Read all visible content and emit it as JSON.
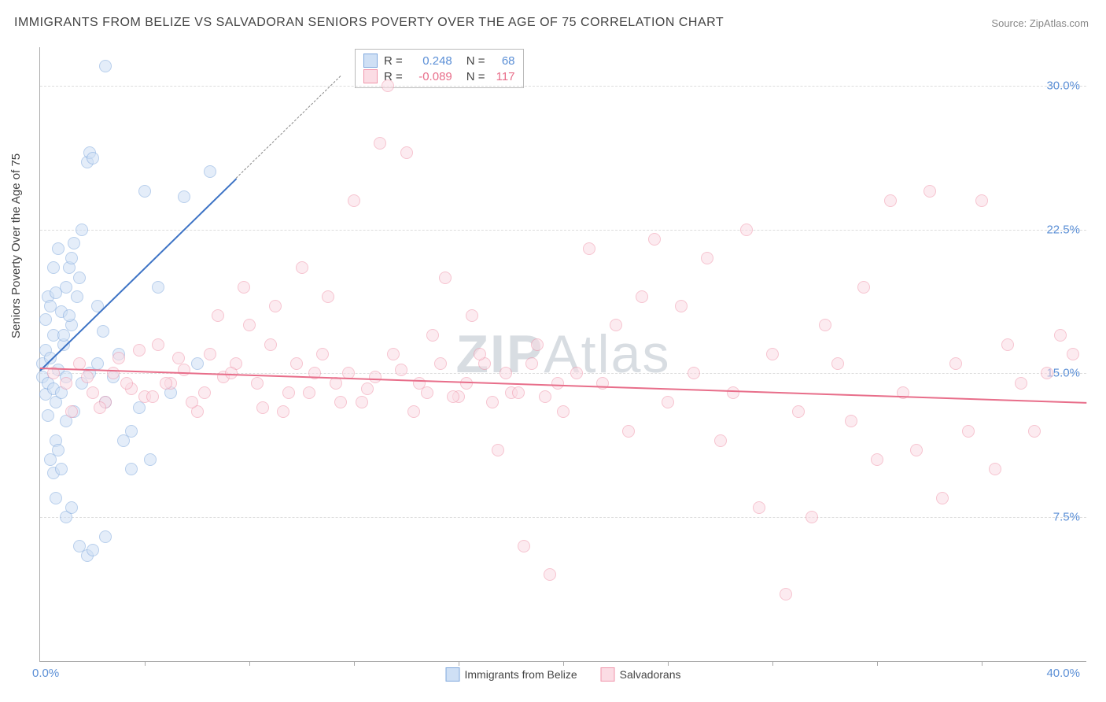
{
  "title": "IMMIGRANTS FROM BELIZE VS SALVADORAN SENIORS POVERTY OVER THE AGE OF 75 CORRELATION CHART",
  "source_label": "Source:",
  "source_value": "ZipAtlas.com",
  "ylabel": "Seniors Poverty Over the Age of 75",
  "watermark_bold": "ZIP",
  "watermark_rest": "Atlas",
  "chart": {
    "type": "scatter",
    "xlim": [
      0,
      40
    ],
    "ylim": [
      0,
      32
    ],
    "x_label_min": "0.0%",
    "x_label_max": "40.0%",
    "y_ticks": [
      7.5,
      15.0,
      22.5,
      30.0
    ],
    "y_tick_labels": [
      "7.5%",
      "15.0%",
      "22.5%",
      "30.0%"
    ],
    "x_minor_ticks": [
      4,
      8,
      12,
      16,
      20,
      24,
      28,
      32,
      36
    ],
    "grid_color": "#dddddd",
    "background_color": "#ffffff",
    "axis_color": "#aaaaaa",
    "tick_label_color": "#5b8fd6",
    "marker_radius": 7,
    "marker_stroke_width": 1.5,
    "series": [
      {
        "name": "Immigrants from Belize",
        "fill": "#cfe0f5",
        "stroke": "#7fa8dd",
        "fill_opacity": 0.55,
        "stats": {
          "R_label": "R =",
          "R": "0.248",
          "N_label": "N =",
          "N": "68",
          "value_color": "#5b8fd6"
        },
        "regression": {
          "x1": 0,
          "y1": 15.2,
          "x2": 7.5,
          "y2": 25.2,
          "dashed_extend_to_x": 11.5,
          "color": "#3d73c5",
          "width": 2
        },
        "points": [
          [
            0.1,
            14.8
          ],
          [
            0.1,
            15.5
          ],
          [
            0.2,
            13.9
          ],
          [
            0.2,
            16.2
          ],
          [
            0.3,
            14.5
          ],
          [
            0.3,
            12.8
          ],
          [
            0.4,
            15.8
          ],
          [
            0.5,
            14.2
          ],
          [
            0.5,
            17.0
          ],
          [
            0.6,
            13.5
          ],
          [
            0.6,
            11.5
          ],
          [
            0.7,
            15.2
          ],
          [
            0.8,
            14.0
          ],
          [
            0.8,
            18.2
          ],
          [
            0.9,
            16.5
          ],
          [
            1.0,
            19.5
          ],
          [
            1.0,
            14.8
          ],
          [
            1.1,
            20.5
          ],
          [
            1.2,
            21.0
          ],
          [
            1.2,
            17.5
          ],
          [
            1.3,
            21.8
          ],
          [
            1.4,
            19.0
          ],
          [
            1.5,
            20.0
          ],
          [
            1.6,
            22.5
          ],
          [
            1.8,
            26.0
          ],
          [
            1.9,
            26.5
          ],
          [
            2.0,
            26.2
          ],
          [
            2.2,
            18.5
          ],
          [
            2.4,
            17.2
          ],
          [
            0.4,
            10.5
          ],
          [
            0.5,
            9.8
          ],
          [
            0.6,
            8.5
          ],
          [
            0.7,
            11.0
          ],
          [
            0.8,
            10.0
          ],
          [
            1.0,
            7.5
          ],
          [
            1.2,
            8.0
          ],
          [
            1.5,
            6.0
          ],
          [
            1.8,
            5.5
          ],
          [
            2.0,
            5.8
          ],
          [
            2.5,
            6.5
          ],
          [
            0.3,
            19.0
          ],
          [
            0.5,
            20.5
          ],
          [
            0.7,
            21.5
          ],
          [
            2.5,
            31.0
          ],
          [
            3.5,
            10.0
          ],
          [
            4.0,
            24.5
          ],
          [
            4.5,
            19.5
          ],
          [
            5.0,
            14.0
          ],
          [
            5.5,
            24.2
          ],
          [
            6.0,
            15.5
          ],
          [
            6.5,
            25.5
          ],
          [
            1.0,
            12.5
          ],
          [
            1.3,
            13.0
          ],
          [
            1.6,
            14.5
          ],
          [
            1.9,
            15.0
          ],
          [
            2.2,
            15.5
          ],
          [
            2.5,
            13.5
          ],
          [
            2.8,
            14.8
          ],
          [
            3.0,
            16.0
          ],
          [
            3.2,
            11.5
          ],
          [
            3.5,
            12.0
          ],
          [
            3.8,
            13.2
          ],
          [
            4.2,
            10.5
          ],
          [
            0.2,
            17.8
          ],
          [
            0.4,
            18.5
          ],
          [
            0.6,
            19.2
          ],
          [
            0.9,
            17.0
          ],
          [
            1.1,
            18.0
          ]
        ]
      },
      {
        "name": "Salvadorans",
        "fill": "#fbdce4",
        "stroke": "#f095ab",
        "fill_opacity": 0.55,
        "stats": {
          "R_label": "R =",
          "R": "-0.089",
          "N_label": "N =",
          "N": "117",
          "value_color": "#e86e8a"
        },
        "regression": {
          "x1": 0,
          "y1": 15.3,
          "x2": 40,
          "y2": 13.5,
          "color": "#e86e8a",
          "width": 2
        },
        "points": [
          [
            0.5,
            15.0
          ],
          [
            1.0,
            14.5
          ],
          [
            1.5,
            15.5
          ],
          [
            2.0,
            14.0
          ],
          [
            2.5,
            13.5
          ],
          [
            3.0,
            15.8
          ],
          [
            3.5,
            14.2
          ],
          [
            4.0,
            13.8
          ],
          [
            4.5,
            16.5
          ],
          [
            5.0,
            14.5
          ],
          [
            5.5,
            15.2
          ],
          [
            6.0,
            13.0
          ],
          [
            6.5,
            16.0
          ],
          [
            7.0,
            14.8
          ],
          [
            7.5,
            15.5
          ],
          [
            8.0,
            17.5
          ],
          [
            8.5,
            13.2
          ],
          [
            9.0,
            18.5
          ],
          [
            9.5,
            14.0
          ],
          [
            10.0,
            20.5
          ],
          [
            10.5,
            15.0
          ],
          [
            11.0,
            19.0
          ],
          [
            11.5,
            13.5
          ],
          [
            12.0,
            24.0
          ],
          [
            12.5,
            14.2
          ],
          [
            13.0,
            27.0
          ],
          [
            13.5,
            16.0
          ],
          [
            14.0,
            26.5
          ],
          [
            14.5,
            14.5
          ],
          [
            15.0,
            17.0
          ],
          [
            15.5,
            20.0
          ],
          [
            16.0,
            13.8
          ],
          [
            16.5,
            18.0
          ],
          [
            17.0,
            15.5
          ],
          [
            17.5,
            11.0
          ],
          [
            18.0,
            14.0
          ],
          [
            18.5,
            6.0
          ],
          [
            19.0,
            16.5
          ],
          [
            19.5,
            4.5
          ],
          [
            20.0,
            13.0
          ],
          [
            20.5,
            15.0
          ],
          [
            21.0,
            21.5
          ],
          [
            21.5,
            14.5
          ],
          [
            22.0,
            17.5
          ],
          [
            22.5,
            12.0
          ],
          [
            23.0,
            19.0
          ],
          [
            23.5,
            22.0
          ],
          [
            24.0,
            13.5
          ],
          [
            24.5,
            18.5
          ],
          [
            25.0,
            15.0
          ],
          [
            25.5,
            21.0
          ],
          [
            26.0,
            11.5
          ],
          [
            26.5,
            14.0
          ],
          [
            27.0,
            22.5
          ],
          [
            27.5,
            8.0
          ],
          [
            28.0,
            16.0
          ],
          [
            28.5,
            3.5
          ],
          [
            29.0,
            13.0
          ],
          [
            29.5,
            7.5
          ],
          [
            30.0,
            17.5
          ],
          [
            30.5,
            15.5
          ],
          [
            31.0,
            12.5
          ],
          [
            31.5,
            19.5
          ],
          [
            32.0,
            10.5
          ],
          [
            32.5,
            24.0
          ],
          [
            33.0,
            14.0
          ],
          [
            33.5,
            11.0
          ],
          [
            34.0,
            24.5
          ],
          [
            34.5,
            8.5
          ],
          [
            35.0,
            15.5
          ],
          [
            35.5,
            12.0
          ],
          [
            36.0,
            24.0
          ],
          [
            36.5,
            10.0
          ],
          [
            37.0,
            16.5
          ],
          [
            37.5,
            14.5
          ],
          [
            38.0,
            12.0
          ],
          [
            38.5,
            15.0
          ],
          [
            39.0,
            17.0
          ],
          [
            39.5,
            16.0
          ],
          [
            1.2,
            13.0
          ],
          [
            1.8,
            14.8
          ],
          [
            2.3,
            13.2
          ],
          [
            2.8,
            15.0
          ],
          [
            3.3,
            14.5
          ],
          [
            3.8,
            16.2
          ],
          [
            4.3,
            13.8
          ],
          [
            4.8,
            14.5
          ],
          [
            5.3,
            15.8
          ],
          [
            5.8,
            13.5
          ],
          [
            6.3,
            14.0
          ],
          [
            6.8,
            18.0
          ],
          [
            7.3,
            15.0
          ],
          [
            7.8,
            19.5
          ],
          [
            8.3,
            14.5
          ],
          [
            8.8,
            16.5
          ],
          [
            9.3,
            13.0
          ],
          [
            9.8,
            15.5
          ],
          [
            10.3,
            14.0
          ],
          [
            10.8,
            16.0
          ],
          [
            11.3,
            14.5
          ],
          [
            11.8,
            15.0
          ],
          [
            12.3,
            13.5
          ],
          [
            12.8,
            14.8
          ],
          [
            13.3,
            30.0
          ],
          [
            13.8,
            15.2
          ],
          [
            14.3,
            13.0
          ],
          [
            14.8,
            14.0
          ],
          [
            15.3,
            15.5
          ],
          [
            15.8,
            13.8
          ],
          [
            16.3,
            14.5
          ],
          [
            16.8,
            16.0
          ],
          [
            17.3,
            13.5
          ],
          [
            17.8,
            15.0
          ],
          [
            18.3,
            14.0
          ],
          [
            18.8,
            15.5
          ],
          [
            19.3,
            13.8
          ],
          [
            19.8,
            14.5
          ]
        ]
      }
    ],
    "bottom_legend": [
      {
        "label": "Immigrants from Belize",
        "fill": "#cfe0f5",
        "stroke": "#7fa8dd"
      },
      {
        "label": "Salvadorans",
        "fill": "#fbdce4",
        "stroke": "#f095ab"
      }
    ]
  }
}
